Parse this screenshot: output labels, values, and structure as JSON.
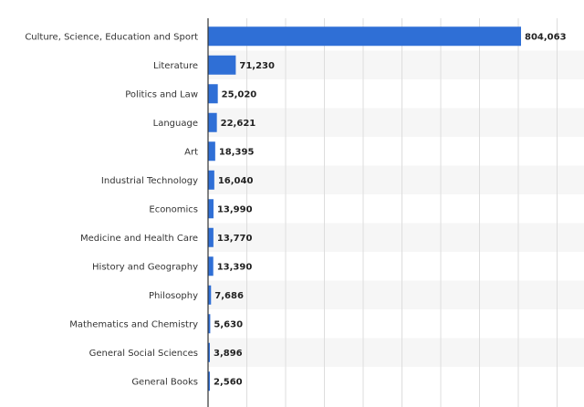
{
  "chart_data": {
    "type": "bar",
    "orientation": "horizontal",
    "title": "",
    "xlabel": "",
    "ylabel": "",
    "categories": [
      "Culture, Science, Education and Sport",
      "Literature",
      "Politics and Law",
      "Language",
      "Art",
      "Industrial Technology",
      "Economics",
      "Medicine and Health Care",
      "History and Geography",
      "Philosophy",
      "Mathematics and Chemistry",
      "General Social Sciences",
      "General Books"
    ],
    "values": [
      804063,
      71230,
      25020,
      22621,
      18395,
      16040,
      13990,
      13770,
      13390,
      7686,
      5630,
      3896,
      2560
    ],
    "value_labels": [
      "804,063",
      "71,230",
      "25,020",
      "22,621",
      "18,395",
      "16,040",
      "13,990",
      "13,770",
      "13,390",
      "7,686",
      "5,630",
      "3,896",
      "2,560"
    ],
    "xlim": [
      0,
      900000
    ],
    "grid": true,
    "bar_color": "#2f6fd6",
    "band_color": "#f6f6f6",
    "grid_color": "#dddddd",
    "axis_color": "#333333"
  }
}
